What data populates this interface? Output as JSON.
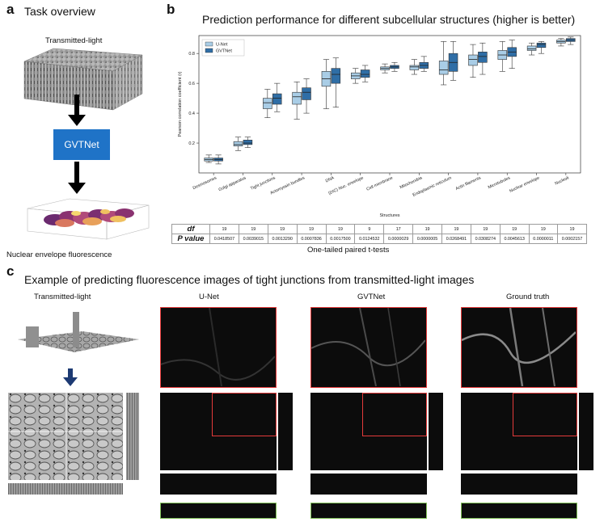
{
  "panel_a": {
    "letter": "a",
    "title": "Task overview",
    "input_label": "Transmitted-light",
    "model_label": "GVTNet",
    "output_label": "Nuclear envelope fluorescence",
    "colors": {
      "model_box": "#1f73c7",
      "output_fluor": "#b04a7a"
    }
  },
  "panel_b": {
    "letter": "b",
    "title": "Prediction performance for different subcellular structures (higher is better)",
    "stats_caption": "One-tailed paired t-tests",
    "stats_rows": {
      "df_label": "df",
      "p_label": "P value",
      "df": [
        "19",
        "19",
        "19",
        "19",
        "19",
        "9",
        "17",
        "19",
        "19",
        "19",
        "19",
        "19",
        "19"
      ],
      "p": [
        "0.0418507",
        "0.0039015",
        "0.0013290",
        "0.0007836",
        "0.0017500",
        "0.0124532",
        "0.0000029",
        "0.0000005",
        "0.0268491",
        "0.0308274",
        "0.0045613",
        "0.0000011",
        "0.0002157"
      ]
    }
  },
  "chart_data": {
    "type": "box",
    "title": "Prediction performance for different subcellular structures (higher is better)",
    "xlabel": "Structures",
    "ylabel": "Pearson correlation coefficient (r)",
    "ylim": [
      0,
      0.92
    ],
    "yticks": [
      "0.2",
      "0.4",
      "0.6",
      "0.8"
    ],
    "ytick_values": [
      0.2,
      0.4,
      0.6,
      0.8
    ],
    "legend_position": "top-left",
    "categories": [
      "Desmosomes",
      "Golgi apparatus",
      "Tight junctions",
      "Actomyosin bundles",
      "DNA",
      "(DIC) Nuc. envelope",
      "Cell membrane",
      "Mitochondria",
      "Endoplasmic reticulum",
      "Actin filaments",
      "Microtubules",
      "Nuclear envelope",
      "Nucleoli"
    ],
    "series": [
      {
        "name": "U-Net",
        "color": "#a9cde6",
        "boxes": [
          {
            "min": 0.07,
            "q1": 0.08,
            "med": 0.09,
            "q3": 0.1,
            "max": 0.12
          },
          {
            "min": 0.15,
            "q1": 0.18,
            "med": 0.19,
            "q3": 0.21,
            "max": 0.24
          },
          {
            "min": 0.37,
            "q1": 0.43,
            "med": 0.47,
            "q3": 0.5,
            "max": 0.56
          },
          {
            "min": 0.36,
            "q1": 0.46,
            "med": 0.51,
            "q3": 0.54,
            "max": 0.61
          },
          {
            "min": 0.43,
            "q1": 0.58,
            "med": 0.63,
            "q3": 0.68,
            "max": 0.76
          },
          {
            "min": 0.6,
            "q1": 0.63,
            "med": 0.65,
            "q3": 0.67,
            "max": 0.7
          },
          {
            "min": 0.67,
            "q1": 0.69,
            "med": 0.7,
            "q3": 0.71,
            "max": 0.73
          },
          {
            "min": 0.66,
            "q1": 0.69,
            "med": 0.71,
            "q3": 0.72,
            "max": 0.76
          },
          {
            "min": 0.59,
            "q1": 0.66,
            "med": 0.69,
            "q3": 0.75,
            "max": 0.88
          },
          {
            "min": 0.64,
            "q1": 0.72,
            "med": 0.76,
            "q3": 0.79,
            "max": 0.86
          },
          {
            "min": 0.68,
            "q1": 0.76,
            "med": 0.79,
            "q3": 0.82,
            "max": 0.88
          },
          {
            "min": 0.79,
            "q1": 0.82,
            "med": 0.83,
            "q3": 0.85,
            "max": 0.87
          },
          {
            "min": 0.85,
            "q1": 0.87,
            "med": 0.88,
            "q3": 0.89,
            "max": 0.9
          }
        ]
      },
      {
        "name": "GVTNet",
        "color": "#2f6ea6",
        "boxes": [
          {
            "min": 0.06,
            "q1": 0.08,
            "med": 0.09,
            "q3": 0.1,
            "max": 0.12
          },
          {
            "min": 0.17,
            "q1": 0.19,
            "med": 0.2,
            "q3": 0.22,
            "max": 0.24
          },
          {
            "min": 0.41,
            "q1": 0.46,
            "med": 0.5,
            "q3": 0.53,
            "max": 0.6
          },
          {
            "min": 0.4,
            "q1": 0.49,
            "med": 0.54,
            "q3": 0.57,
            "max": 0.63
          },
          {
            "min": 0.44,
            "q1": 0.6,
            "med": 0.66,
            "q3": 0.7,
            "max": 0.77
          },
          {
            "min": 0.61,
            "q1": 0.64,
            "med": 0.66,
            "q3": 0.69,
            "max": 0.72
          },
          {
            "min": 0.68,
            "q1": 0.7,
            "med": 0.71,
            "q3": 0.72,
            "max": 0.74
          },
          {
            "min": 0.68,
            "q1": 0.7,
            "med": 0.72,
            "q3": 0.74,
            "max": 0.78
          },
          {
            "min": 0.62,
            "q1": 0.68,
            "med": 0.74,
            "q3": 0.8,
            "max": 0.88
          },
          {
            "min": 0.66,
            "q1": 0.74,
            "med": 0.78,
            "q3": 0.81,
            "max": 0.87
          },
          {
            "min": 0.7,
            "q1": 0.78,
            "med": 0.81,
            "q3": 0.84,
            "max": 0.89
          },
          {
            "min": 0.8,
            "q1": 0.84,
            "med": 0.86,
            "q3": 0.87,
            "max": 0.88
          },
          {
            "min": 0.86,
            "q1": 0.88,
            "med": 0.89,
            "q3": 0.9,
            "max": 0.91
          }
        ]
      }
    ]
  },
  "panel_c": {
    "letter": "c",
    "title": "Example of predicting fluorescence images of tight junctions from transmitted-light images",
    "col_labels": [
      "Transmitted-light",
      "U-Net",
      "GVTNet",
      "Ground truth"
    ],
    "colors": {
      "zoom_frame": "#e53a3a",
      "side_frame": "#7fbf56",
      "arrow": "#1d3a73"
    }
  }
}
